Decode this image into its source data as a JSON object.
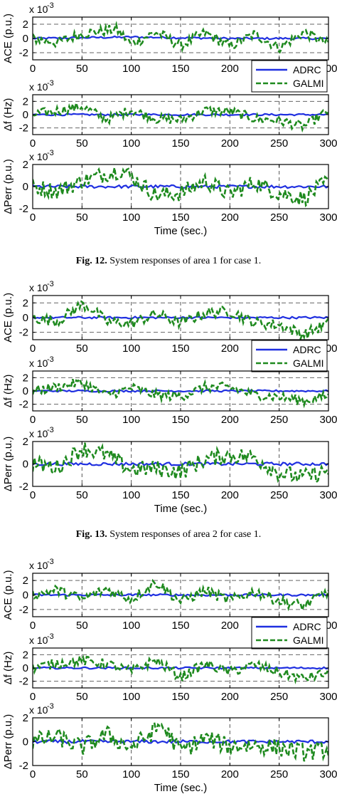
{
  "figures": [
    {
      "caption_label": "Fig. 12.",
      "caption_text": "System responses of area 1 for case 1.",
      "xlabel": "Time (sec.)"
    },
    {
      "caption_label": "Fig. 13.",
      "caption_text": "System responses of area 2 for case 1.",
      "xlabel": "Time (sec.)"
    },
    {
      "caption_label": "",
      "caption_text": "",
      "xlabel": "Time (sec.)"
    }
  ],
  "legend": [
    {
      "name": "ADRC",
      "color": "#1f2fe0",
      "style": "solid"
    },
    {
      "name": "GALMI",
      "color": "#1f8a1f",
      "style": "dashed"
    }
  ],
  "subplot_labels": [
    "ACE (p.u.)",
    "Δf (Hz)",
    "ΔPerr (p.u.)"
  ],
  "scale_factor": "x 10",
  "scale_exponent": "-3",
  "chart_data": [
    {
      "type": "line",
      "figure": "Fig. 12.",
      "subplot": "ACE (p.u.)",
      "x_range": [
        0,
        300
      ],
      "ylim": [
        -3,
        3
      ],
      "xticks": [
        0,
        50,
        100,
        150,
        200,
        250,
        300
      ],
      "yticks": [
        -2,
        0,
        2
      ],
      "reference_lines": [
        -2,
        2
      ],
      "grid": true,
      "legend": "top-right",
      "series": [
        {
          "name": "ADRC",
          "x": [
            0,
            50,
            100,
            150,
            200,
            250,
            300
          ],
          "y": [
            0.0,
            0.1,
            0.2,
            0.1,
            0.0,
            0.0,
            0.0
          ]
        },
        {
          "name": "GALMI",
          "x": [
            0,
            25,
            50,
            75,
            85,
            100,
            125,
            150,
            175,
            200,
            225,
            250,
            275,
            300
          ],
          "y": [
            0.0,
            -0.6,
            0.7,
            1.1,
            1.3,
            -0.8,
            0.9,
            -1.0,
            0.8,
            -1.1,
            0.6,
            -1.3,
            0.9,
            -0.8
          ]
        }
      ]
    },
    {
      "type": "line",
      "figure": "Fig. 12.",
      "subplot": "Δf (Hz)",
      "x_range": [
        0,
        300
      ],
      "ylim": [
        -3,
        3
      ],
      "xticks": [
        0,
        50,
        100,
        150,
        200,
        250,
        300
      ],
      "yticks": [
        -2,
        0,
        2
      ],
      "reference_lines": [
        -2,
        2
      ],
      "grid": true,
      "series": [
        {
          "name": "ADRC",
          "x": [
            0,
            50,
            100,
            150,
            200,
            250,
            300
          ],
          "y": [
            0.0,
            0.0,
            0.0,
            0.0,
            0.0,
            0.0,
            0.0
          ]
        },
        {
          "name": "GALMI",
          "x": [
            0,
            25,
            50,
            75,
            100,
            125,
            150,
            175,
            200,
            225,
            250,
            275,
            300
          ],
          "y": [
            0.0,
            0.6,
            1.2,
            -0.7,
            0.7,
            -0.6,
            -0.8,
            0.6,
            0.5,
            -0.6,
            -0.9,
            -1.8,
            0.6
          ]
        }
      ]
    },
    {
      "type": "line",
      "figure": "Fig. 12.",
      "subplot": "ΔPerr (p.u.)",
      "x_range": [
        0,
        300
      ],
      "ylim": [
        -2,
        2
      ],
      "xticks": [
        0,
        50,
        100,
        150,
        200,
        250,
        300
      ],
      "yticks": [
        -2,
        0,
        2
      ],
      "grid": true,
      "series": [
        {
          "name": "ADRC",
          "x": [
            0,
            50,
            100,
            150,
            200,
            250,
            300
          ],
          "y": [
            0.0,
            0.0,
            0.0,
            0.0,
            0.0,
            0.0,
            0.0
          ]
        },
        {
          "name": "GALMI",
          "x": [
            0,
            25,
            50,
            75,
            90,
            100,
            125,
            150,
            175,
            200,
            225,
            250,
            275,
            300
          ],
          "y": [
            0.0,
            -0.4,
            0.5,
            1.2,
            1.5,
            0.9,
            -0.8,
            -0.6,
            0.5,
            -0.7,
            0.4,
            -0.6,
            -1.1,
            0.5
          ]
        }
      ]
    },
    {
      "type": "line",
      "figure": "Fig. 13.",
      "subplot": "ACE (p.u.)",
      "x_range": [
        0,
        300
      ],
      "ylim": [
        -3,
        3
      ],
      "xticks": [
        0,
        50,
        100,
        150,
        200,
        250,
        300
      ],
      "yticks": [
        -2,
        0,
        2
      ],
      "reference_lines": [
        -2,
        2
      ],
      "grid": true,
      "legend": "top-right",
      "series": [
        {
          "name": "ADRC",
          "x": [
            0,
            50,
            100,
            150,
            200,
            250,
            300
          ],
          "y": [
            0.0,
            0.0,
            0.0,
            0.0,
            0.0,
            0.0,
            0.0
          ]
        },
        {
          "name": "GALMI",
          "x": [
            0,
            25,
            50,
            60,
            75,
            100,
            125,
            150,
            175,
            200,
            225,
            250,
            275,
            300
          ],
          "y": [
            0.0,
            -0.5,
            1.8,
            1.2,
            -0.6,
            -0.8,
            0.5,
            -0.7,
            0.6,
            0.9,
            -0.7,
            -1.0,
            -2.3,
            -0.8
          ]
        }
      ]
    },
    {
      "type": "line",
      "figure": "Fig. 13.",
      "subplot": "Δf (Hz)",
      "x_range": [
        0,
        300
      ],
      "ylim": [
        -3,
        3
      ],
      "xticks": [
        0,
        50,
        100,
        150,
        200,
        250,
        300
      ],
      "yticks": [
        -2,
        0,
        2
      ],
      "reference_lines": [
        -2,
        2
      ],
      "grid": true,
      "series": [
        {
          "name": "ADRC",
          "x": [
            0,
            50,
            100,
            150,
            200,
            250,
            300
          ],
          "y": [
            0.0,
            0.0,
            0.0,
            0.0,
            0.0,
            0.0,
            0.0
          ]
        },
        {
          "name": "GALMI",
          "x": [
            0,
            25,
            50,
            75,
            100,
            125,
            150,
            175,
            200,
            225,
            250,
            275,
            300
          ],
          "y": [
            0.0,
            0.6,
            1.3,
            -0.7,
            0.5,
            -0.6,
            -0.8,
            0.6,
            0.5,
            -0.6,
            -0.9,
            -1.5,
            -0.7
          ]
        }
      ]
    },
    {
      "type": "line",
      "figure": "Fig. 13.",
      "subplot": "ΔPerr (p.u.)",
      "x_range": [
        0,
        300
      ],
      "ylim": [
        -2,
        2
      ],
      "xticks": [
        0,
        50,
        100,
        150,
        200,
        250,
        300
      ],
      "yticks": [
        -2,
        0,
        2
      ],
      "grid": true,
      "series": [
        {
          "name": "ADRC",
          "x": [
            0,
            50,
            100,
            150,
            200,
            250,
            300
          ],
          "y": [
            0.0,
            0.0,
            0.0,
            0.0,
            0.0,
            0.0,
            0.0
          ]
        },
        {
          "name": "GALMI",
          "x": [
            0,
            25,
            50,
            75,
            100,
            125,
            150,
            175,
            200,
            225,
            250,
            275,
            300
          ],
          "y": [
            0.0,
            -0.3,
            1.4,
            0.8,
            -0.5,
            -0.4,
            -0.7,
            0.4,
            0.8,
            0.6,
            -0.8,
            -1.2,
            -0.6
          ]
        }
      ]
    },
    {
      "type": "line",
      "figure": "",
      "subplot": "ACE (p.u.)",
      "x_range": [
        0,
        300
      ],
      "ylim": [
        -3,
        3
      ],
      "xticks": [
        0,
        50,
        100,
        150,
        200,
        250,
        300
      ],
      "yticks": [
        -2,
        0,
        2
      ],
      "reference_lines": [
        -2,
        2
      ],
      "grid": true,
      "legend": "top-right",
      "series": [
        {
          "name": "ADRC",
          "x": [
            0,
            50,
            100,
            150,
            200,
            250,
            300
          ],
          "y": [
            0.0,
            0.0,
            0.0,
            0.0,
            0.0,
            0.0,
            0.0
          ]
        },
        {
          "name": "GALMI",
          "x": [
            0,
            25,
            50,
            75,
            100,
            125,
            150,
            175,
            200,
            225,
            250,
            275,
            300
          ],
          "y": [
            0.0,
            0.7,
            -0.6,
            0.8,
            -0.6,
            1.8,
            -0.9,
            0.6,
            -0.8,
            0.5,
            -0.8,
            -1.5,
            0.6
          ]
        }
      ]
    },
    {
      "type": "line",
      "figure": "",
      "subplot": "Δf (Hz)",
      "x_range": [
        0,
        300
      ],
      "ylim": [
        -3,
        3
      ],
      "xticks": [
        0,
        50,
        100,
        150,
        200,
        250,
        300
      ],
      "yticks": [
        -2,
        0,
        2
      ],
      "reference_lines": [
        -2,
        2
      ],
      "grid": true,
      "series": [
        {
          "name": "ADRC",
          "x": [
            0,
            50,
            100,
            150,
            200,
            250,
            300
          ],
          "y": [
            0.0,
            0.0,
            0.0,
            0.0,
            0.0,
            0.0,
            0.0
          ]
        },
        {
          "name": "GALMI",
          "x": [
            0,
            25,
            50,
            75,
            100,
            125,
            150,
            175,
            200,
            225,
            250,
            275,
            300
          ],
          "y": [
            0.0,
            0.7,
            1.1,
            0.6,
            -0.5,
            1.2,
            -1.4,
            0.6,
            -0.6,
            0.5,
            -0.7,
            -1.6,
            -0.7
          ]
        }
      ]
    },
    {
      "type": "line",
      "figure": "",
      "subplot": "ΔPerr (p.u.)",
      "x_range": [
        0,
        300
      ],
      "ylim": [
        -2,
        2
      ],
      "xticks": [
        0,
        50,
        100,
        150,
        200,
        250,
        300
      ],
      "yticks": [
        -2,
        0,
        2
      ],
      "grid": true,
      "series": [
        {
          "name": "ADRC",
          "x": [
            0,
            50,
            100,
            150,
            200,
            250,
            300
          ],
          "y": [
            0.0,
            0.0,
            0.0,
            0.0,
            0.0,
            0.0,
            0.0
          ]
        },
        {
          "name": "GALMI",
          "x": [
            0,
            25,
            50,
            75,
            100,
            125,
            130,
            150,
            175,
            200,
            225,
            250,
            275,
            300
          ],
          "y": [
            0.0,
            0.4,
            -0.5,
            0.6,
            -0.5,
            1.0,
            1.5,
            -0.8,
            0.3,
            -0.4,
            -0.3,
            -0.5,
            -0.9,
            -0.6
          ]
        }
      ]
    }
  ]
}
